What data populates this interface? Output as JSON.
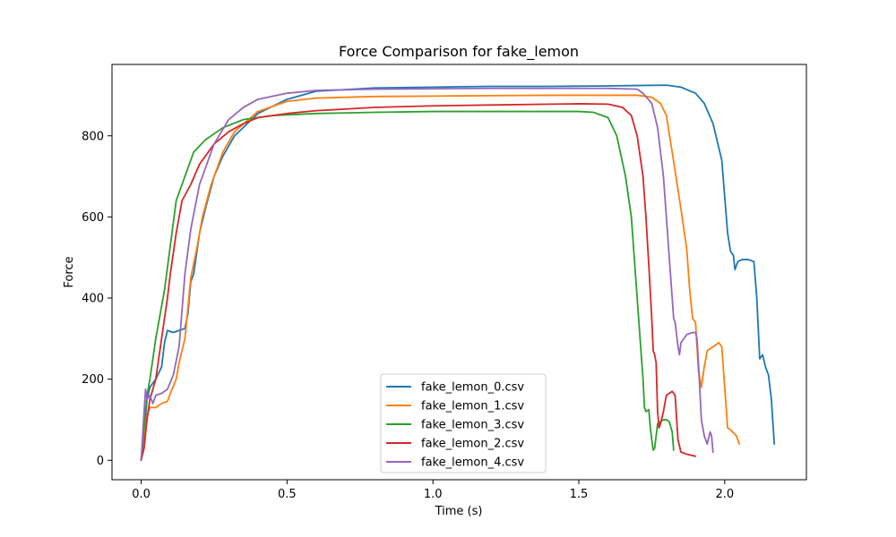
{
  "chart_data": {
    "type": "line",
    "title": "Force Comparison for fake_lemon",
    "xlabel": "Time (s)",
    "ylabel": "Force",
    "xlim": [
      -0.1,
      2.28
    ],
    "ylim": [
      -48,
      976
    ],
    "xticks": [
      0.0,
      0.5,
      1.0,
      1.5,
      2.0
    ],
    "xtick_labels": [
      "0.0",
      "0.5",
      "1.0",
      "1.5",
      "2.0"
    ],
    "yticks": [
      0,
      200,
      400,
      600,
      800
    ],
    "ytick_labels": [
      "0",
      "200",
      "400",
      "600",
      "800"
    ],
    "grid": false,
    "legend_position": "lower-center",
    "series": [
      {
        "name": "fake_lemon_0.csv",
        "color": "#1f77b4",
        "points": [
          [
            0,
            0
          ],
          [
            0.01,
            60
          ],
          [
            0.02,
            150
          ],
          [
            0.03,
            180
          ],
          [
            0.05,
            200
          ],
          [
            0.07,
            230
          ],
          [
            0.08,
            290
          ],
          [
            0.09,
            320
          ],
          [
            0.11,
            315
          ],
          [
            0.13,
            320
          ],
          [
            0.15,
            325
          ],
          [
            0.16,
            360
          ],
          [
            0.17,
            440
          ],
          [
            0.18,
            460
          ],
          [
            0.2,
            560
          ],
          [
            0.22,
            620
          ],
          [
            0.25,
            700
          ],
          [
            0.28,
            750
          ],
          [
            0.32,
            800
          ],
          [
            0.4,
            855
          ],
          [
            0.5,
            890
          ],
          [
            0.6,
            910
          ],
          [
            0.8,
            918
          ],
          [
            1.0,
            920
          ],
          [
            1.2,
            922
          ],
          [
            1.4,
            922
          ],
          [
            1.6,
            923
          ],
          [
            1.7,
            924
          ],
          [
            1.8,
            925
          ],
          [
            1.85,
            920
          ],
          [
            1.9,
            905
          ],
          [
            1.93,
            880
          ],
          [
            1.96,
            830
          ],
          [
            1.99,
            740
          ],
          [
            2.0,
            650
          ],
          [
            2.01,
            560
          ],
          [
            2.02,
            515
          ],
          [
            2.03,
            505
          ],
          [
            2.035,
            470
          ],
          [
            2.045,
            490
          ],
          [
            2.06,
            495
          ],
          [
            2.08,
            495
          ],
          [
            2.1,
            490
          ],
          [
            2.11,
            400
          ],
          [
            2.12,
            250
          ],
          [
            2.13,
            260
          ],
          [
            2.14,
            230
          ],
          [
            2.15,
            210
          ],
          [
            2.16,
            150
          ],
          [
            2.17,
            40
          ]
        ]
      },
      {
        "name": "fake_lemon_1.csv",
        "color": "#ff7f0e",
        "points": [
          [
            0,
            0
          ],
          [
            0.01,
            50
          ],
          [
            0.02,
            110
          ],
          [
            0.03,
            130
          ],
          [
            0.05,
            130
          ],
          [
            0.07,
            140
          ],
          [
            0.09,
            145
          ],
          [
            0.1,
            165
          ],
          [
            0.12,
            200
          ],
          [
            0.13,
            240
          ],
          [
            0.15,
            300
          ],
          [
            0.17,
            450
          ],
          [
            0.19,
            520
          ],
          [
            0.21,
            600
          ],
          [
            0.24,
            680
          ],
          [
            0.28,
            760
          ],
          [
            0.32,
            810
          ],
          [
            0.4,
            860
          ],
          [
            0.5,
            885
          ],
          [
            0.6,
            893
          ],
          [
            0.8,
            897
          ],
          [
            1.0,
            898
          ],
          [
            1.2,
            899
          ],
          [
            1.4,
            900
          ],
          [
            1.6,
            900
          ],
          [
            1.7,
            900
          ],
          [
            1.75,
            895
          ],
          [
            1.78,
            880
          ],
          [
            1.8,
            850
          ],
          [
            1.82,
            760
          ],
          [
            1.85,
            620
          ],
          [
            1.87,
            520
          ],
          [
            1.88,
            420
          ],
          [
            1.89,
            350
          ],
          [
            1.9,
            340
          ],
          [
            1.905,
            280
          ],
          [
            1.91,
            220
          ],
          [
            1.92,
            180
          ],
          [
            1.93,
            230
          ],
          [
            1.94,
            270
          ],
          [
            1.96,
            280
          ],
          [
            1.98,
            290
          ],
          [
            1.99,
            280
          ],
          [
            2.0,
            180
          ],
          [
            2.01,
            80
          ],
          [
            2.02,
            75
          ],
          [
            2.04,
            60
          ],
          [
            2.05,
            40
          ]
        ]
      },
      {
        "name": "fake_lemon_3.csv",
        "color": "#2ca02c",
        "points": [
          [
            0,
            0
          ],
          [
            0.01,
            80
          ],
          [
            0.02,
            160
          ],
          [
            0.03,
            200
          ],
          [
            0.04,
            250
          ],
          [
            0.05,
            300
          ],
          [
            0.06,
            340
          ],
          [
            0.08,
            420
          ],
          [
            0.1,
            530
          ],
          [
            0.12,
            640
          ],
          [
            0.15,
            700
          ],
          [
            0.18,
            760
          ],
          [
            0.22,
            790
          ],
          [
            0.28,
            820
          ],
          [
            0.35,
            840
          ],
          [
            0.45,
            850
          ],
          [
            0.6,
            855
          ],
          [
            0.8,
            858
          ],
          [
            1.0,
            860
          ],
          [
            1.2,
            860
          ],
          [
            1.4,
            860
          ],
          [
            1.5,
            860
          ],
          [
            1.55,
            858
          ],
          [
            1.6,
            845
          ],
          [
            1.63,
            800
          ],
          [
            1.66,
            700
          ],
          [
            1.68,
            600
          ],
          [
            1.69,
            500
          ],
          [
            1.7,
            400
          ],
          [
            1.71,
            300
          ],
          [
            1.72,
            200
          ],
          [
            1.725,
            130
          ],
          [
            1.73,
            120
          ],
          [
            1.74,
            125
          ],
          [
            1.745,
            80
          ],
          [
            1.75,
            50
          ],
          [
            1.755,
            25
          ],
          [
            1.76,
            30
          ],
          [
            1.77,
            90
          ],
          [
            1.79,
            100
          ],
          [
            1.8,
            100
          ],
          [
            1.81,
            95
          ],
          [
            1.82,
            70
          ],
          [
            1.825,
            25
          ]
        ]
      },
      {
        "name": "fake_lemon_2.csv",
        "color": "#d62728",
        "points": [
          [
            0,
            0
          ],
          [
            0.01,
            30
          ],
          [
            0.02,
            100
          ],
          [
            0.03,
            150
          ],
          [
            0.05,
            200
          ],
          [
            0.07,
            300
          ],
          [
            0.09,
            400
          ],
          [
            0.1,
            460
          ],
          [
            0.12,
            560
          ],
          [
            0.14,
            640
          ],
          [
            0.17,
            680
          ],
          [
            0.2,
            730
          ],
          [
            0.25,
            780
          ],
          [
            0.3,
            810
          ],
          [
            0.35,
            830
          ],
          [
            0.4,
            845
          ],
          [
            0.5,
            855
          ],
          [
            0.6,
            862
          ],
          [
            0.8,
            870
          ],
          [
            1.0,
            874
          ],
          [
            1.2,
            876
          ],
          [
            1.4,
            878
          ],
          [
            1.5,
            879
          ],
          [
            1.6,
            878
          ],
          [
            1.65,
            870
          ],
          [
            1.68,
            850
          ],
          [
            1.7,
            800
          ],
          [
            1.72,
            700
          ],
          [
            1.73,
            600
          ],
          [
            1.74,
            480
          ],
          [
            1.75,
            350
          ],
          [
            1.755,
            270
          ],
          [
            1.76,
            260
          ],
          [
            1.765,
            240
          ],
          [
            1.77,
            120
          ],
          [
            1.775,
            80
          ],
          [
            1.78,
            90
          ],
          [
            1.79,
            120
          ],
          [
            1.8,
            160
          ],
          [
            1.82,
            170
          ],
          [
            1.83,
            160
          ],
          [
            1.84,
            50
          ],
          [
            1.85,
            20
          ],
          [
            1.87,
            15
          ],
          [
            1.9,
            10
          ]
        ]
      },
      {
        "name": "fake_lemon_4.csv",
        "color": "#9467bd",
        "points": [
          [
            0,
            0
          ],
          [
            0.01,
            120
          ],
          [
            0.015,
            175
          ],
          [
            0.02,
            150
          ],
          [
            0.03,
            160
          ],
          [
            0.04,
            140
          ],
          [
            0.05,
            160
          ],
          [
            0.07,
            165
          ],
          [
            0.09,
            175
          ],
          [
            0.11,
            210
          ],
          [
            0.13,
            280
          ],
          [
            0.14,
            370
          ],
          [
            0.15,
            460
          ],
          [
            0.17,
            570
          ],
          [
            0.2,
            680
          ],
          [
            0.25,
            780
          ],
          [
            0.3,
            840
          ],
          [
            0.35,
            870
          ],
          [
            0.4,
            890
          ],
          [
            0.5,
            905
          ],
          [
            0.6,
            912
          ],
          [
            0.8,
            915
          ],
          [
            1.0,
            916
          ],
          [
            1.2,
            917
          ],
          [
            1.4,
            917
          ],
          [
            1.6,
            917
          ],
          [
            1.7,
            915
          ],
          [
            1.72,
            905
          ],
          [
            1.75,
            880
          ],
          [
            1.77,
            820
          ],
          [
            1.79,
            700
          ],
          [
            1.8,
            600
          ],
          [
            1.81,
            500
          ],
          [
            1.82,
            400
          ],
          [
            1.825,
            350
          ],
          [
            1.83,
            340
          ],
          [
            1.84,
            280
          ],
          [
            1.845,
            260
          ],
          [
            1.85,
            290
          ],
          [
            1.87,
            310
          ],
          [
            1.89,
            315
          ],
          [
            1.9,
            315
          ],
          [
            1.905,
            300
          ],
          [
            1.91,
            240
          ],
          [
            1.92,
            100
          ],
          [
            1.93,
            60
          ],
          [
            1.94,
            40
          ],
          [
            1.95,
            70
          ],
          [
            1.955,
            60
          ],
          [
            1.96,
            20
          ]
        ]
      }
    ]
  }
}
